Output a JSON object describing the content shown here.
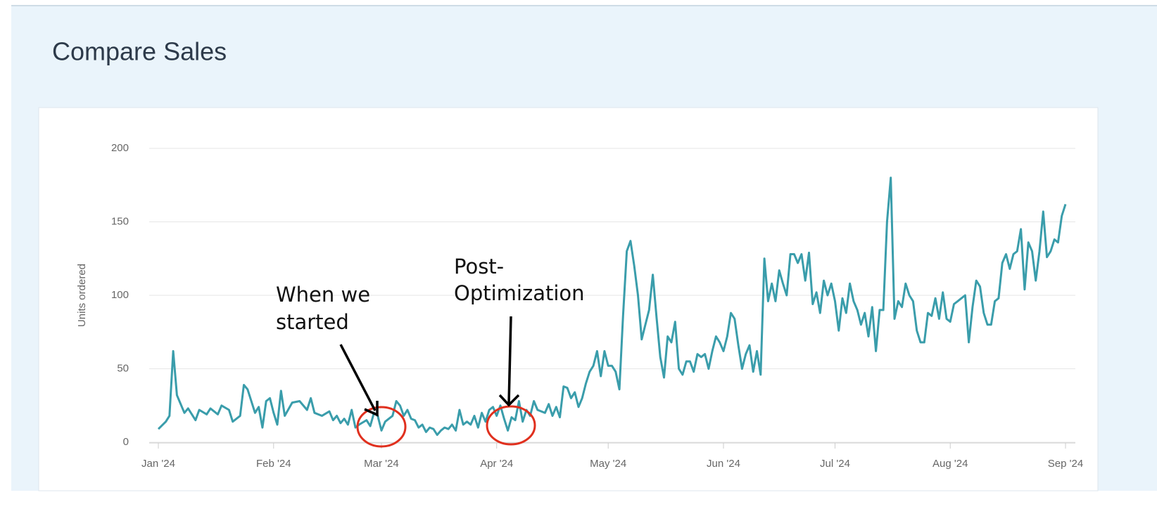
{
  "title": "Compare Sales",
  "chart_data": {
    "type": "line",
    "ylabel": "Units ordered",
    "color": "#3a9dab",
    "grid": true,
    "annotations": [
      [
        "When we",
        "started"
      ],
      [
        "Post-",
        "Optimization"
      ]
    ],
    "xlim": [
      0,
      244
    ],
    "xticks": [
      {
        "value": 0,
        "label": "Jan '24"
      },
      {
        "value": 31,
        "label": "Feb '24"
      },
      {
        "value": 60,
        "label": "Mar '24"
      },
      {
        "value": 91,
        "label": "Apr '24"
      },
      {
        "value": 121,
        "label": "May '24"
      },
      {
        "value": 152,
        "label": "Jun '24"
      },
      {
        "value": 182,
        "label": "Jul '24"
      },
      {
        "value": 213,
        "label": "Aug '24"
      },
      {
        "value": 244,
        "label": "Sep '24"
      }
    ],
    "ylim": [
      0,
      200
    ],
    "yticks": [
      0,
      50,
      100,
      150,
      200
    ],
    "x": [
      0,
      2,
      3,
      4,
      5,
      7,
      8,
      10,
      11,
      13,
      14,
      16,
      17,
      19,
      20,
      22,
      23,
      24,
      26,
      27,
      28,
      29,
      30,
      31,
      32,
      33,
      34,
      36,
      38,
      40,
      41,
      42,
      44,
      46,
      47,
      48,
      49,
      50,
      51,
      52,
      53,
      54,
      56,
      57,
      58,
      59,
      60,
      61,
      62,
      63,
      64,
      65,
      66,
      67,
      68,
      69,
      70,
      71,
      72,
      73,
      74,
      75,
      76,
      77,
      78,
      79,
      80,
      81,
      82,
      83,
      84,
      85,
      86,
      87,
      88,
      89,
      90,
      91,
      92,
      93,
      94,
      95,
      96,
      97,
      98,
      99,
      100,
      101,
      102,
      104,
      105,
      106,
      107,
      108,
      109,
      110,
      111,
      112,
      113,
      114,
      115,
      116,
      117,
      118,
      119,
      120,
      121,
      122,
      123,
      124,
      125,
      126,
      127,
      128,
      129,
      130,
      131,
      132,
      133,
      134,
      135,
      136,
      137,
      138,
      139,
      140,
      141,
      142,
      143,
      144,
      145,
      146,
      147,
      148,
      149,
      150,
      151,
      152,
      153,
      154,
      155,
      156,
      157,
      158,
      159,
      160,
      161,
      162,
      163,
      164,
      165,
      166,
      167,
      168,
      169,
      170,
      171,
      172,
      173,
      174,
      175,
      176,
      177,
      178,
      179,
      180,
      181,
      182,
      183,
      184,
      185,
      186,
      187,
      188,
      189,
      190,
      191,
      192,
      193,
      194,
      195,
      196,
      197,
      198,
      199,
      200,
      201,
      202,
      203,
      204,
      205,
      206,
      207,
      208,
      209,
      210,
      211,
      212,
      213,
      214,
      215,
      216,
      217,
      218,
      219,
      220,
      221,
      222,
      223,
      224,
      225,
      226,
      227,
      228,
      229,
      230,
      231,
      232,
      233,
      234,
      235,
      236,
      237,
      238,
      239,
      240,
      241,
      242,
      243,
      244
    ],
    "values": [
      9,
      14,
      18,
      62,
      32,
      20,
      23,
      15,
      22,
      19,
      23,
      19,
      25,
      22,
      14,
      18,
      39,
      36,
      20,
      24,
      10,
      28,
      30,
      20,
      12,
      35,
      18,
      27,
      28,
      22,
      30,
      20,
      18,
      21,
      15,
      18,
      13,
      16,
      12,
      22,
      10,
      12,
      15,
      11,
      20,
      18,
      8,
      14,
      16,
      18,
      28,
      25,
      18,
      22,
      16,
      15,
      10,
      12,
      7,
      10,
      9,
      5,
      8,
      10,
      9,
      12,
      8,
      22,
      12,
      14,
      12,
      18,
      10,
      20,
      14,
      22,
      24,
      18,
      25,
      16,
      8,
      17,
      15,
      28,
      14,
      22,
      18,
      28,
      22,
      20,
      26,
      18,
      24,
      17,
      38,
      37,
      30,
      34,
      24,
      30,
      40,
      48,
      52,
      62,
      45,
      62,
      52,
      52,
      48,
      36,
      86,
      130,
      137,
      120,
      100,
      70,
      80,
      90,
      114,
      85,
      58,
      44,
      72,
      68,
      82,
      50,
      46,
      55,
      55,
      48,
      60,
      58,
      60,
      50,
      62,
      72,
      68,
      62,
      72,
      88,
      84,
      66,
      50,
      60,
      66,
      48,
      62,
      46,
      125,
      96,
      108,
      96,
      117,
      108,
      100,
      128,
      128,
      122,
      128,
      110,
      129,
      94,
      102,
      88,
      110,
      100,
      108,
      96,
      76,
      98,
      88,
      108,
      96,
      90,
      80,
      88,
      72,
      92,
      62,
      90,
      90,
      150,
      180,
      84,
      96,
      92,
      108,
      100,
      96,
      76,
      68,
      68,
      88,
      86,
      98,
      84,
      102,
      84,
      82,
      94,
      96,
      98,
      100,
      68,
      92,
      110,
      106,
      88,
      80,
      80,
      96,
      98,
      122,
      128,
      118,
      128,
      130,
      145,
      104,
      136,
      130,
      110,
      130,
      157,
      126,
      130,
      138,
      136,
      154,
      162
    ]
  }
}
